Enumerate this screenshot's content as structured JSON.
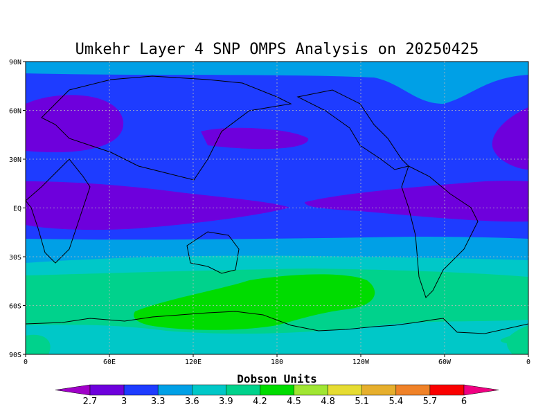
{
  "map": {
    "title": "Umkehr Layer 4 SNP OMPS Analysis on 20250425",
    "lat_labels": [
      "90N",
      "60N",
      "30N",
      "EQ",
      "30S",
      "60S",
      "90S"
    ],
    "lon_labels": [
      "0",
      "60E",
      "120E",
      "180",
      "120W",
      "60W",
      "0"
    ],
    "grid": true
  },
  "colorbar": {
    "title": "Dobson Units",
    "levels": [
      2.7,
      3,
      3.3,
      3.6,
      3.9,
      4.2,
      4.5,
      4.8,
      5.1,
      5.4,
      5.7,
      6
    ],
    "colors": [
      "#a000c8",
      "#6e00dc",
      "#1e3cff",
      "#00a0e6",
      "#00c8c8",
      "#00d28c",
      "#00dc00",
      "#a0e632",
      "#e6dc32",
      "#e6af2d",
      "#f08228",
      "#fa0000",
      "#f00082"
    ]
  }
}
